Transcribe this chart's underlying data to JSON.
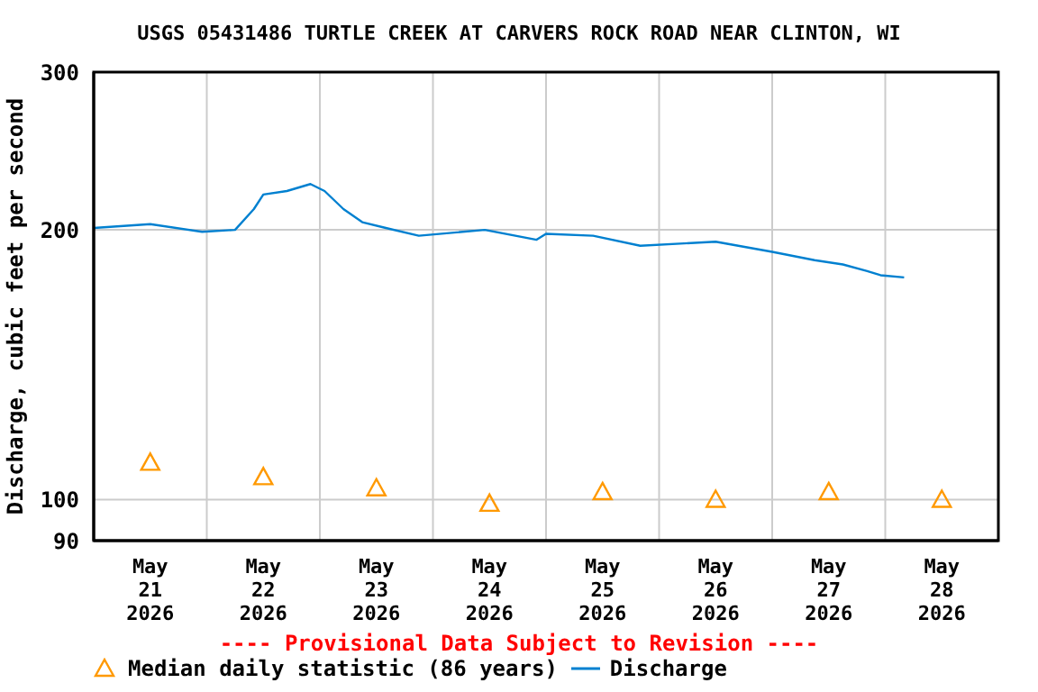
{
  "chart_data": {
    "type": "line",
    "title": "USGS 05431486 TURTLE CREEK AT CARVERS ROCK ROAD NEAR CLINTON, WI",
    "ylabel": "Discharge, cubic feet per second",
    "annotations": [
      "---- Provisional Data Subject to Revision ----"
    ],
    "log": "y",
    "grid": true,
    "legend": "bottom",
    "xlim": [
      "2026-05-21T00:00",
      "2026-05-29T00:00"
    ],
    "xticks": [
      {
        "value": "2026-05-21T12:00",
        "label": "May 21 2026"
      },
      {
        "value": "2026-05-22T00:00",
        "label": null
      },
      {
        "value": "2026-05-22T12:00",
        "label": "May 22 2026"
      },
      {
        "value": "2026-05-23T00:00",
        "label": null
      },
      {
        "value": "2026-05-23T12:00",
        "label": "May 23 2026"
      },
      {
        "value": "2026-05-24T00:00",
        "label": null
      },
      {
        "value": "2026-05-24T12:00",
        "label": "May 24 2026"
      },
      {
        "value": "2026-05-25T00:00",
        "label": null
      },
      {
        "value": "2026-05-25T12:00",
        "label": "May 25 2026"
      },
      {
        "value": "2026-05-26T00:00",
        "label": null
      },
      {
        "value": "2026-05-26T12:00",
        "label": "May 26 2026"
      },
      {
        "value": "2026-05-27T00:00",
        "label": null
      },
      {
        "value": "2026-05-27T12:00",
        "label": "May 27 2026"
      },
      {
        "value": "2026-05-28T00:00",
        "label": null
      },
      {
        "value": "2026-05-28T12:00",
        "label": "May 28 2026"
      }
    ],
    "ylim": [
      90,
      300
    ],
    "yticks": [
      90,
      100,
      200,
      300
    ],
    "series": [
      {
        "name": "Median daily statistic (86 years)",
        "type": "scatter",
        "marker": "triangle",
        "color": "#ff9900",
        "x": [
          "2026-05-21T12:00",
          "2026-05-22T12:00",
          "2026-05-23T12:00",
          "2026-05-24T12:00",
          "2026-05-25T12:00",
          "2026-05-26T12:00",
          "2026-05-27T12:00",
          "2026-05-28T12:00"
        ],
        "values": [
          110,
          106,
          103,
          99,
          102,
          100,
          102,
          100
        ]
      },
      {
        "name": "Discharge",
        "marker": "none",
        "color": "#0080d0",
        "x": [
          "2026-05-21T00:00",
          "2026-05-21T12:00",
          "2026-05-21T23:00",
          "2026-05-22T06:00",
          "2026-05-22T10:00",
          "2026-05-22T12:00",
          "2026-05-22T17:00",
          "2026-05-22T22:00",
          "2026-05-23T01:00",
          "2026-05-23T05:00",
          "2026-05-23T09:00",
          "2026-05-23T14:00",
          "2026-05-23T21:00",
          "2026-05-24T11:00",
          "2026-05-24T22:00",
          "2026-05-25T00:00",
          "2026-05-25T10:00",
          "2026-05-25T20:00",
          "2026-05-26T12:00",
          "2026-05-27T00:00",
          "2026-05-27T09:00",
          "2026-05-27T15:00",
          "2026-05-27T20:00",
          "2026-05-27T23:00",
          "2026-05-28T04:00"
        ],
        "values": [
          201,
          203,
          199,
          200,
          211,
          219,
          221,
          225,
          221,
          211,
          204,
          201,
          197,
          200,
          195,
          198,
          197,
          192,
          194,
          189,
          185,
          183,
          180,
          178,
          177
        ]
      }
    ]
  }
}
